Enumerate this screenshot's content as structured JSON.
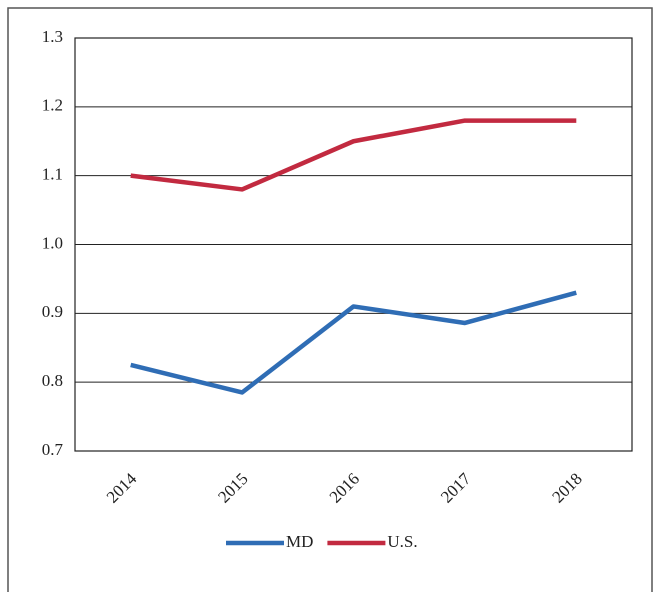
{
  "chart_data": {
    "type": "line",
    "categories": [
      "2014",
      "2015",
      "2016",
      "2017",
      "2018"
    ],
    "series": [
      {
        "name": "MD",
        "color": "#2f6db5",
        "values": [
          0.825,
          0.785,
          0.91,
          0.886,
          0.93
        ]
      },
      {
        "name": "U.S.",
        "color": "#c22a40",
        "values": [
          1.1,
          1.08,
          1.15,
          1.18,
          1.18
        ]
      }
    ],
    "ylim": [
      0.7,
      1.3
    ],
    "yticks": [
      0.7,
      0.8,
      0.9,
      {
        "value": 1,
        "label": "1.0"
      },
      1.1,
      1.2,
      1.3
    ],
    "grid": true,
    "legend": "bottom"
  }
}
